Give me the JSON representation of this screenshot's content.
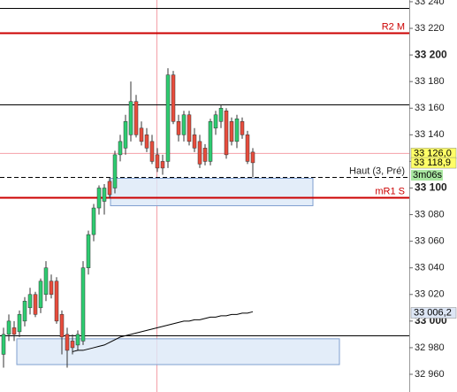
{
  "chart_data": {
    "type": "candlestick",
    "ylim": [
      32946.7,
      33241.3
    ],
    "yticks": [
      {
        "value": 32960,
        "label": "32 960"
      },
      {
        "value": 32980,
        "label": "32 980"
      },
      {
        "value": 33000,
        "label": "33 000"
      },
      {
        "value": 33020,
        "label": "33 020"
      },
      {
        "value": 33040,
        "label": "33 040"
      },
      {
        "value": 33060,
        "label": "33 060"
      },
      {
        "value": 33080,
        "label": "33 080"
      },
      {
        "value": 33100,
        "label": "33 100"
      },
      {
        "value": 33120,
        "label": "33 120"
      },
      {
        "value": 33140,
        "label": "33 140"
      },
      {
        "value": 33160,
        "label": "33 160"
      },
      {
        "value": 33180,
        "label": "33 180"
      },
      {
        "value": 33200,
        "label": "33 200"
      },
      {
        "value": 33220,
        "label": "33 220"
      },
      {
        "value": 33240,
        "label": "33 240"
      }
    ],
    "up_color": "#2ecc71",
    "down_color": "#e74c3c",
    "open": [
      32975,
      32990,
      32995,
      32992,
      33000,
      33010,
      33020,
      33010,
      33020,
      33030,
      33030,
      33005,
      32990,
      32985,
      32982,
      32985,
      33040,
      33065,
      33085,
      33090,
      33105,
      33100,
      33125,
      33130,
      33140,
      33165,
      33145,
      33140,
      33135,
      33125,
      33120,
      33120,
      33185,
      33150,
      33140,
      33155,
      33140,
      33135,
      33130,
      33120,
      33145,
      33150,
      33158,
      33150,
      33135,
      33150,
      33140,
      33127
    ],
    "high": [
      32995,
      33005,
      33000,
      33008,
      33018,
      33025,
      33022,
      33032,
      33045,
      33035,
      33033,
      33008,
      32995,
      32990,
      32993,
      33045,
      33068,
      33088,
      33102,
      33103,
      33108,
      33128,
      33140,
      33155,
      33180,
      33170,
      33150,
      33145,
      33140,
      33130,
      33125,
      33190,
      33188,
      33155,
      33158,
      33158,
      33145,
      33140,
      33133,
      33152,
      33158,
      33163,
      33160,
      33153,
      33155,
      33153,
      33143,
      33130
    ],
    "low": [
      32965,
      32985,
      32985,
      32988,
      32996,
      33005,
      33003,
      33006,
      33015,
      33017,
      32998,
      32975,
      32965,
      32975,
      32978,
      32982,
      33035,
      33060,
      33080,
      33080,
      33092,
      33096,
      33120,
      33125,
      33135,
      33138,
      33132,
      33127,
      33118,
      33112,
      33110,
      33115,
      33148,
      33135,
      33135,
      33132,
      33127,
      33115,
      33117,
      33117,
      33140,
      33145,
      33122,
      33132,
      33130,
      33137,
      33118,
      33108
    ],
    "close": [
      32990,
      33000,
      32990,
      33005,
      33015,
      33020,
      33005,
      33030,
      33040,
      33020,
      33000,
      32988,
      32978,
      32980,
      32990,
      33040,
      33065,
      33085,
      33100,
      33100,
      33095,
      33125,
      33135,
      33150,
      33165,
      33140,
      33135,
      33130,
      33120,
      33115,
      33115,
      33185,
      33150,
      33140,
      33155,
      33135,
      33130,
      33118,
      33120,
      33150,
      33155,
      33160,
      33125,
      33135,
      33152,
      33140,
      33120,
      33119
    ],
    "moving_average": [
      null,
      null,
      null,
      null,
      null,
      null,
      null,
      null,
      null,
      null,
      null,
      null,
      null,
      32977,
      32978,
      32978,
      32979,
      32980,
      32981,
      32982,
      32984,
      32986,
      32988,
      32989,
      32990,
      32991,
      32992,
      32993,
      32994,
      32995,
      32996,
      32997,
      32998,
      32999,
      33000,
      33000,
      33001,
      33001,
      33002,
      33003,
      33003,
      33004,
      33004,
      33005,
      33005,
      33006,
      33006,
      33007
    ],
    "ma_color": "#000000",
    "levels": [
      {
        "value": 33235,
        "color": "#000000"
      },
      {
        "value": 33217,
        "color": "#cc0000",
        "label": "R2 M"
      },
      {
        "value": 33163,
        "color": "#000000"
      },
      {
        "value": 33108,
        "color": "#000000",
        "dashed": true,
        "label": "Haut (3, Pré)"
      },
      {
        "value": 33093,
        "color": "#cc0000",
        "label": "mR1 S"
      },
      {
        "value": 32989,
        "color": "#000000"
      }
    ],
    "zones": [
      [
        33107.3,
        33086.7
      ],
      [
        32986.7,
        32967.3
      ]
    ],
    "price_tags": [
      {
        "value": 33126,
        "label": "33 126,0",
        "color": "#ffff66"
      },
      {
        "value": 33118.9,
        "label": "33 118,9",
        "color": "#ffff66"
      },
      {
        "value": 33006.2,
        "label": "33 006,2",
        "color": "#dde6f5"
      }
    ],
    "countdown": "3m06s"
  }
}
